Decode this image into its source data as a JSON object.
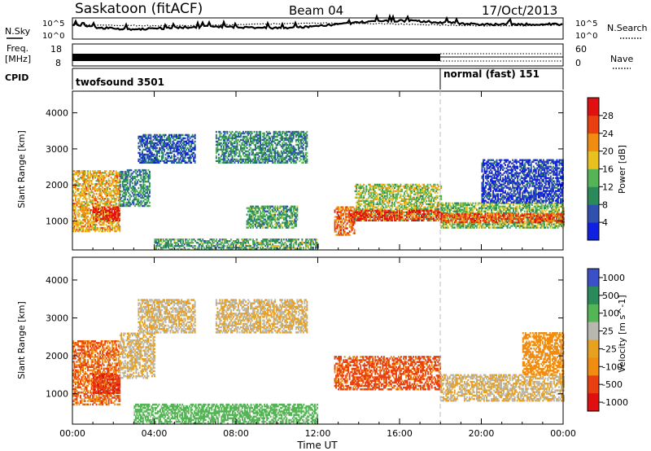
{
  "header": {
    "site": "Saskatoon (fitACF)",
    "beam": "Beam 04",
    "date": "17/Oct/2013"
  },
  "strips": {
    "nsky": {
      "label": "N.Sky",
      "ticks": [
        "10^5",
        "10^0"
      ],
      "right_label": "N.Search",
      "right_ticks": [
        "10^5",
        "10^0"
      ]
    },
    "freq": {
      "label_top": "Freq.",
      "label_bottom": "[MHz]",
      "ticks": [
        "18",
        "8"
      ],
      "right_label": "Nave",
      "right_ticks": [
        "60",
        "0"
      ]
    },
    "cpid": {
      "label": "CPID",
      "segments": [
        {
          "name": "twofsound 3501",
          "start_hr": 0,
          "end_hr": 18
        },
        {
          "name": "normal (fast) 151",
          "start_hr": 18,
          "end_hr": 24
        }
      ]
    }
  },
  "colors": {
    "power": [
      "#1020e0",
      "#3050b0",
      "#2a8a5a",
      "#55b455",
      "#e8c020",
      "#f08c10",
      "#e84010",
      "#e01010"
    ],
    "velocity": [
      "#3a50c8",
      "#2a8a5a",
      "#55b455",
      "#b8b8b0",
      "#e8a020",
      "#f08c10",
      "#e84010",
      "#e01010"
    ]
  },
  "chart_data": [
    {
      "type": "heatmap",
      "panel": "power",
      "ylabel": "Slant Range [km]",
      "xlabel": "",
      "xlim": [
        0,
        24
      ],
      "ylim": [
        200,
        4600
      ],
      "yticks": [
        "1000",
        "2000",
        "3000",
        "4000"
      ],
      "xticks": [
        "00:00",
        "04:00",
        "08:00",
        "12:00",
        "16:00",
        "20:00",
        "00:00"
      ],
      "colorbar": {
        "label": "Power [dB]",
        "ticks": [
          "28",
          "24",
          "20",
          "16",
          "12",
          "8",
          "4"
        ]
      },
      "regions": [
        {
          "t": [
            0,
            2.3
          ],
          "r": [
            700,
            2400
          ],
          "v": 20
        },
        {
          "t": [
            1,
            2.3
          ],
          "r": [
            1000,
            1400
          ],
          "v": 30
        },
        {
          "t": [
            2.3,
            3.8
          ],
          "r": [
            1400,
            2400
          ],
          "v": 10
        },
        {
          "t": [
            3.2,
            6
          ],
          "r": [
            2600,
            3400
          ],
          "v": 6
        },
        {
          "t": [
            7,
            11.5
          ],
          "r": [
            2600,
            3500
          ],
          "v": 10
        },
        {
          "t": [
            4,
            12
          ],
          "r": [
            200,
            500
          ],
          "v": 12
        },
        {
          "t": [
            8.5,
            11
          ],
          "r": [
            800,
            1400
          ],
          "v": 12
        },
        {
          "t": [
            12.8,
            13.8
          ],
          "r": [
            600,
            1400
          ],
          "v": 24
        },
        {
          "t": [
            13.8,
            18
          ],
          "r": [
            1000,
            2000
          ],
          "v": 16
        },
        {
          "t": [
            13.5,
            18
          ],
          "r": [
            1000,
            1300
          ],
          "v": 28
        },
        {
          "t": [
            18,
            24
          ],
          "r": [
            800,
            1500
          ],
          "v": 14
        },
        {
          "t": [
            18,
            24
          ],
          "r": [
            950,
            1200
          ],
          "v": 26
        },
        {
          "t": [
            20,
            24
          ],
          "r": [
            1500,
            2700
          ],
          "v": 4
        }
      ]
    },
    {
      "type": "heatmap",
      "panel": "velocity",
      "ylabel": "Slant Range [km]",
      "xlabel": "Time UT",
      "xlim": [
        0,
        24
      ],
      "ylim": [
        200,
        4600
      ],
      "yticks": [
        "1000",
        "2000",
        "3000",
        "4000"
      ],
      "xticks": [
        "00:00",
        "04:00",
        "08:00",
        "12:00",
        "16:00",
        "20:00",
        "00:00"
      ],
      "colorbar": {
        "label": "Velocity [m s^-1]",
        "ticks": [
          "1000",
          "500",
          "100",
          "25",
          "-25",
          "-100",
          "-500",
          "-1000"
        ]
      },
      "regions": [
        {
          "t": [
            0,
            2.3
          ],
          "r": [
            700,
            2400
          ],
          "v": -300
        },
        {
          "t": [
            1,
            2.3
          ],
          "r": [
            1000,
            1500
          ],
          "v": -600
        },
        {
          "t": [
            2.3,
            4
          ],
          "r": [
            1400,
            2600
          ],
          "v": 0
        },
        {
          "t": [
            3.2,
            6
          ],
          "r": [
            2600,
            3500
          ],
          "v": 0
        },
        {
          "t": [
            7,
            11.5
          ],
          "r": [
            2600,
            3500
          ],
          "v": 0
        },
        {
          "t": [
            3,
            12
          ],
          "r": [
            200,
            700
          ],
          "v": 100
        },
        {
          "t": [
            12.8,
            18
          ],
          "r": [
            1100,
            2000
          ],
          "v": -400
        },
        {
          "t": [
            18,
            24
          ],
          "r": [
            800,
            1500
          ],
          "v": 0
        },
        {
          "t": [
            22,
            24
          ],
          "r": [
            1500,
            2600
          ],
          "v": -200
        }
      ]
    }
  ]
}
